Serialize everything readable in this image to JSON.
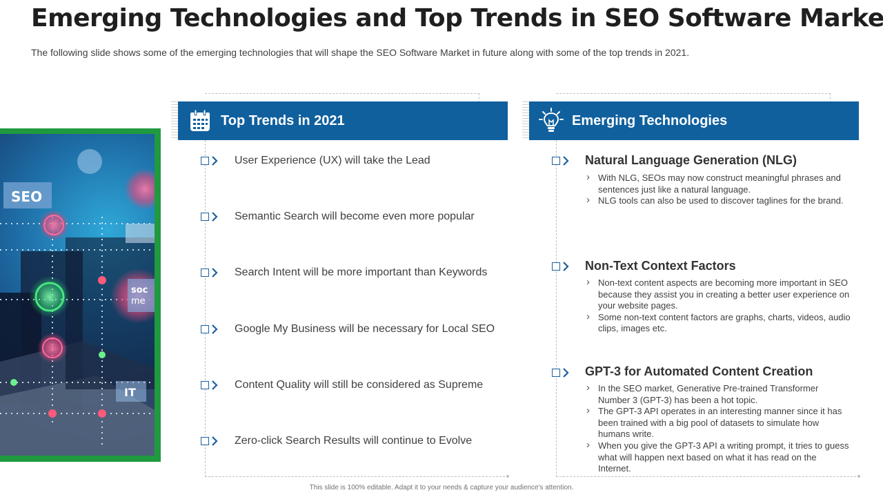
{
  "title": "Emerging Technologies and Top Trends in SEO Software Market",
  "subtitle": "The following slide shows some of the emerging technologies that will shape the SEO Software Market in future along with some of the top trends in 2021.",
  "image": {
    "labels": [
      "SEO",
      "soc",
      "me",
      "IT"
    ]
  },
  "trends": {
    "header": "Top Trends in 2021",
    "icon": "calendar-icon",
    "items": [
      "User Experience (UX) will take the Lead",
      "Semantic Search will become even more popular",
      "Search Intent  will be more important than Keywords",
      "Google My Business will be necessary for Local SEO",
      "Content Quality will still be considered as Supreme",
      "Zero-click Search Results will continue to Evolve"
    ]
  },
  "technologies": {
    "header": "Emerging Technologies",
    "icon": "lightbulb-icon",
    "items": [
      {
        "title": "Natural Language Generation (NLG)",
        "points": [
          "With NLG, SEOs may now construct meaningful phrases and sentences just like a natural language.",
          "NLG tools can also be used to discover taglines for the brand."
        ]
      },
      {
        "title": "Non-Text Context Factors",
        "points": [
          "Non-text content aspects are becoming more important in SEO because they assist you in creating a better user experience on your website pages.",
          "Some non-text content factors are graphs, charts, videos, audio clips, images etc."
        ]
      },
      {
        "title": "GPT-3 for Automated Content Creation",
        "points": [
          "In the SEO market, Generative Pre-trained Transformer Number 3 (GPT-3) has been a hot topic.",
          "The GPT-3 API operates in an interesting manner since it has been trained with a big pool of datasets to simulate how humans write.",
          "When you give the GPT-3 API a writing prompt, it tries to guess what will happen next based on what it has read on the Internet."
        ]
      }
    ]
  },
  "footer": "This slide is 100% editable. Adapt it to your needs & capture your audience's attention.",
  "colors": {
    "header_blue": "#10609E",
    "frame_green": "#1F9A3F",
    "bullet_blue": "#1A5F9E"
  }
}
